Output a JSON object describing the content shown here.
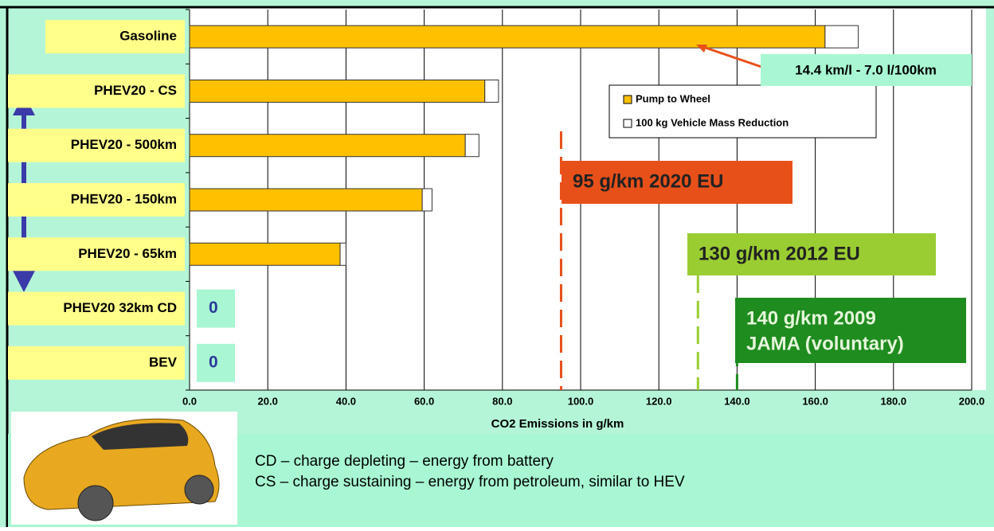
{
  "chart_data": {
    "type": "bar",
    "orientation": "horizontal",
    "stacked": true,
    "categories": [
      "Gasoline",
      "PHEV20 - CS",
      "PHEV20 - 500km",
      "PHEV20 - 150km",
      "PHEV20 - 65km",
      "PHEV20 32km CD",
      "BEV"
    ],
    "series": [
      {
        "name": "Pump to Wheel",
        "color": "#ffc000",
        "values": [
          162.5,
          75.5,
          70.5,
          59.5,
          38.5,
          0,
          0
        ]
      },
      {
        "name": "100 kg Vehicle Mass Reduction",
        "color": "#ffffff",
        "values": [
          8.5,
          3.5,
          3.5,
          2.5,
          1.5,
          0,
          0
        ]
      }
    ],
    "xlim": [
      0,
      200
    ],
    "xticks": [
      {
        "value": 0,
        "label": "0.0"
      },
      {
        "value": 20,
        "label": "20.0"
      },
      {
        "value": 40,
        "label": "40.0"
      },
      {
        "value": 60,
        "label": "60.0"
      },
      {
        "value": 80,
        "label": "80.0"
      },
      {
        "value": 100,
        "label": "100.0"
      },
      {
        "value": 120,
        "label": "120.0"
      },
      {
        "value": 140,
        "label": "140.0"
      },
      {
        "value": 160,
        "label": "160.0"
      },
      {
        "value": 180,
        "label": "180.0"
      },
      {
        "value": 200,
        "label": "200.0"
      }
    ],
    "xlabel": "CO2 Emissions  in   g/km",
    "grid": true,
    "legend": "upper right",
    "reference_lines": [
      {
        "value": 95,
        "label": [
          "95 g/km 2020 EU"
        ],
        "color": "#e8501a"
      },
      {
        "value": 130,
        "label": [
          "130 g/km 2012 EU"
        ],
        "color": "#9acd32"
      },
      {
        "value": 140,
        "label": [
          "140 g/km 2009",
          "JAMA (voluntary)"
        ],
        "color": "#1e8c1e"
      }
    ],
    "annotations": [
      {
        "text": "14.4 km/l - 7.0 l/100km"
      }
    ]
  },
  "notes": [
    "CD – charge depleting – energy from battery",
    "CS – charge sustaining – energy from petroleum, similar to HEV"
  ]
}
